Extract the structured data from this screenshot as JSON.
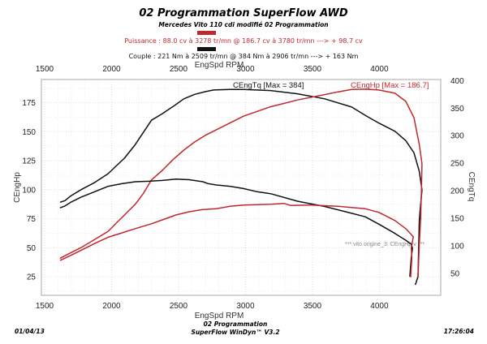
{
  "header": {
    "title": "02 Programmation SuperFlow AWD",
    "subtitle": "Mercedes Vito 110 cdi modifié 02 Programmation",
    "power_line": "Puissance : 88.0 cv à 3278 tr/mn  @  186.7 cv à 3780 tr/mn    ---> + 98.7 cv",
    "torque_line": "Couple : 221 Nm à 2509 tr/mn  @  384 Nm à 2906 tr/mn    ---> + 163 Nm"
  },
  "footer": {
    "date": "01/04/13",
    "brand_line1": "02 Programmation",
    "brand_line2": "SuperFlow WinDyn™ V3.2",
    "time": "17:26:04"
  },
  "chart_data": {
    "type": "line",
    "xlabel": "EngSpd RPM",
    "ylabel_left": "CEngHp",
    "ylabel_right": "CEngTq",
    "xlim": [
      1476,
      4458
    ],
    "ylim_left": [
      9,
      195
    ],
    "ylim_right": [
      10,
      402
    ],
    "x_ticks": [
      1500,
      2000,
      2500,
      3000,
      3500,
      4000
    ],
    "y_ticks_left": [
      25,
      50,
      75,
      100,
      125,
      150,
      175
    ],
    "y_ticks_right": [
      50,
      100,
      150,
      200,
      250,
      300,
      350,
      400
    ],
    "grid": true,
    "legend": [
      {
        "label": "CEngTq [Max = 384]",
        "color": "#111111"
      },
      {
        "label": "CEngHp [Max = 186.7]",
        "color": "#c0282d"
      }
    ],
    "annotation": "*** vito origine_3: CEngHp-v ***",
    "colors": {
      "hp": "#c0282d",
      "tq": "#111111"
    },
    "series": [
      {
        "name": "CEngTq",
        "axis": "right",
        "color": "#111111",
        "points": [
          [
            1615,
            179
          ],
          [
            1652,
            182
          ],
          [
            1692,
            190
          ],
          [
            1773,
            202
          ],
          [
            1874,
            215
          ],
          [
            1975,
            231
          ],
          [
            2035,
            245
          ],
          [
            2096,
            259
          ],
          [
            2177,
            284
          ],
          [
            2238,
            306
          ],
          [
            2298,
            328
          ],
          [
            2379,
            340
          ],
          [
            2459,
            353
          ],
          [
            2540,
            367
          ],
          [
            2621,
            375
          ],
          [
            2702,
            380
          ],
          [
            2763,
            383
          ],
          [
            2884,
            384
          ],
          [
            2985,
            384
          ],
          [
            3187,
            382
          ],
          [
            3389,
            376
          ],
          [
            3591,
            367
          ],
          [
            3793,
            352
          ],
          [
            3894,
            337
          ],
          [
            3995,
            323
          ],
          [
            4116,
            308
          ],
          [
            4197,
            291
          ],
          [
            4258,
            269
          ],
          [
            4298,
            235
          ],
          [
            4318,
            201
          ],
          [
            4308,
            176
          ],
          [
            4298,
            147
          ],
          [
            4294,
            103
          ],
          [
            4288,
            44
          ],
          [
            4268,
            29
          ]
        ]
      },
      {
        "name": "CEngHp",
        "axis": "left",
        "color": "#c0282d",
        "points": [
          [
            1615,
            40.9
          ],
          [
            1692,
            45.5
          ],
          [
            1773,
            50.2
          ],
          [
            1874,
            57.2
          ],
          [
            1975,
            64.2
          ],
          [
            2035,
            71.2
          ],
          [
            2096,
            78.2
          ],
          [
            2177,
            87.5
          ],
          [
            2238,
            96.9
          ],
          [
            2298,
            108.5
          ],
          [
            2379,
            116.7
          ],
          [
            2459,
            126
          ],
          [
            2540,
            134.2
          ],
          [
            2621,
            141.2
          ],
          [
            2702,
            147
          ],
          [
            2783,
            151.7
          ],
          [
            2884,
            157.5
          ],
          [
            2985,
            163.4
          ],
          [
            3187,
            171.5
          ],
          [
            3389,
            177.4
          ],
          [
            3591,
            182
          ],
          [
            3692,
            184.4
          ],
          [
            3793,
            186.5
          ],
          [
            3894,
            186.7
          ],
          [
            3995,
            186
          ],
          [
            4116,
            183.2
          ],
          [
            4197,
            176.2
          ],
          [
            4258,
            162.2
          ],
          [
            4298,
            138.9
          ],
          [
            4318,
            122.5
          ],
          [
            4314,
            99.2
          ],
          [
            4308,
            75.9
          ],
          [
            4298,
            52.5
          ],
          [
            4288,
            24.5
          ]
        ]
      },
      {
        "name": "vito origine_3 CEngTq",
        "axis": "right",
        "color": "#111111",
        "points": [
          [
            1615,
            168.8
          ],
          [
            1652,
            172.2
          ],
          [
            1692,
            178.6
          ],
          [
            1773,
            188.4
          ],
          [
            1874,
            198.2
          ],
          [
            1975,
            208
          ],
          [
            2076,
            212.8
          ],
          [
            2177,
            216.3
          ],
          [
            2278,
            217.2
          ],
          [
            2379,
            218.6
          ],
          [
            2480,
            221.1
          ],
          [
            2580,
            220
          ],
          [
            2682,
            216.3
          ],
          [
            2722,
            212.8
          ],
          [
            2783,
            210.4
          ],
          [
            2884,
            208
          ],
          [
            2985,
            204
          ],
          [
            3086,
            198.2
          ],
          [
            3187,
            194.7
          ],
          [
            3389,
            181
          ],
          [
            3591,
            171.3
          ],
          [
            3793,
            159
          ],
          [
            3894,
            152.6
          ],
          [
            3995,
            139.4
          ],
          [
            4116,
            122.4
          ],
          [
            4197,
            110.1
          ],
          [
            4238,
            102.8
          ],
          [
            4247,
            95.5
          ],
          [
            4238,
            78.5
          ],
          [
            4227,
            44.1
          ]
        ]
      },
      {
        "name": "vito origine_3 CEngHp",
        "axis": "left",
        "color": "#c0282d",
        "points": [
          [
            1615,
            39
          ],
          [
            1692,
            43.2
          ],
          [
            1773,
            47.9
          ],
          [
            1874,
            53.7
          ],
          [
            1975,
            59.1
          ],
          [
            2076,
            62.8
          ],
          [
            2177,
            66.5
          ],
          [
            2298,
            70.7
          ],
          [
            2379,
            74
          ],
          [
            2480,
            78.2
          ],
          [
            2580,
            81
          ],
          [
            2682,
            82.9
          ],
          [
            2783,
            83.6
          ],
          [
            2884,
            85.7
          ],
          [
            2985,
            86.8
          ],
          [
            3187,
            87.5
          ],
          [
            3288,
            88.2
          ],
          [
            3338,
            86.4
          ],
          [
            3490,
            86.8
          ],
          [
            3692,
            85.7
          ],
          [
            3894,
            83.6
          ],
          [
            3995,
            80.5
          ],
          [
            4116,
            73.5
          ],
          [
            4197,
            66.5
          ],
          [
            4253,
            59.5
          ],
          [
            4238,
            50.2
          ],
          [
            4242,
            40.9
          ],
          [
            4233,
            24.5
          ]
        ]
      }
    ]
  }
}
